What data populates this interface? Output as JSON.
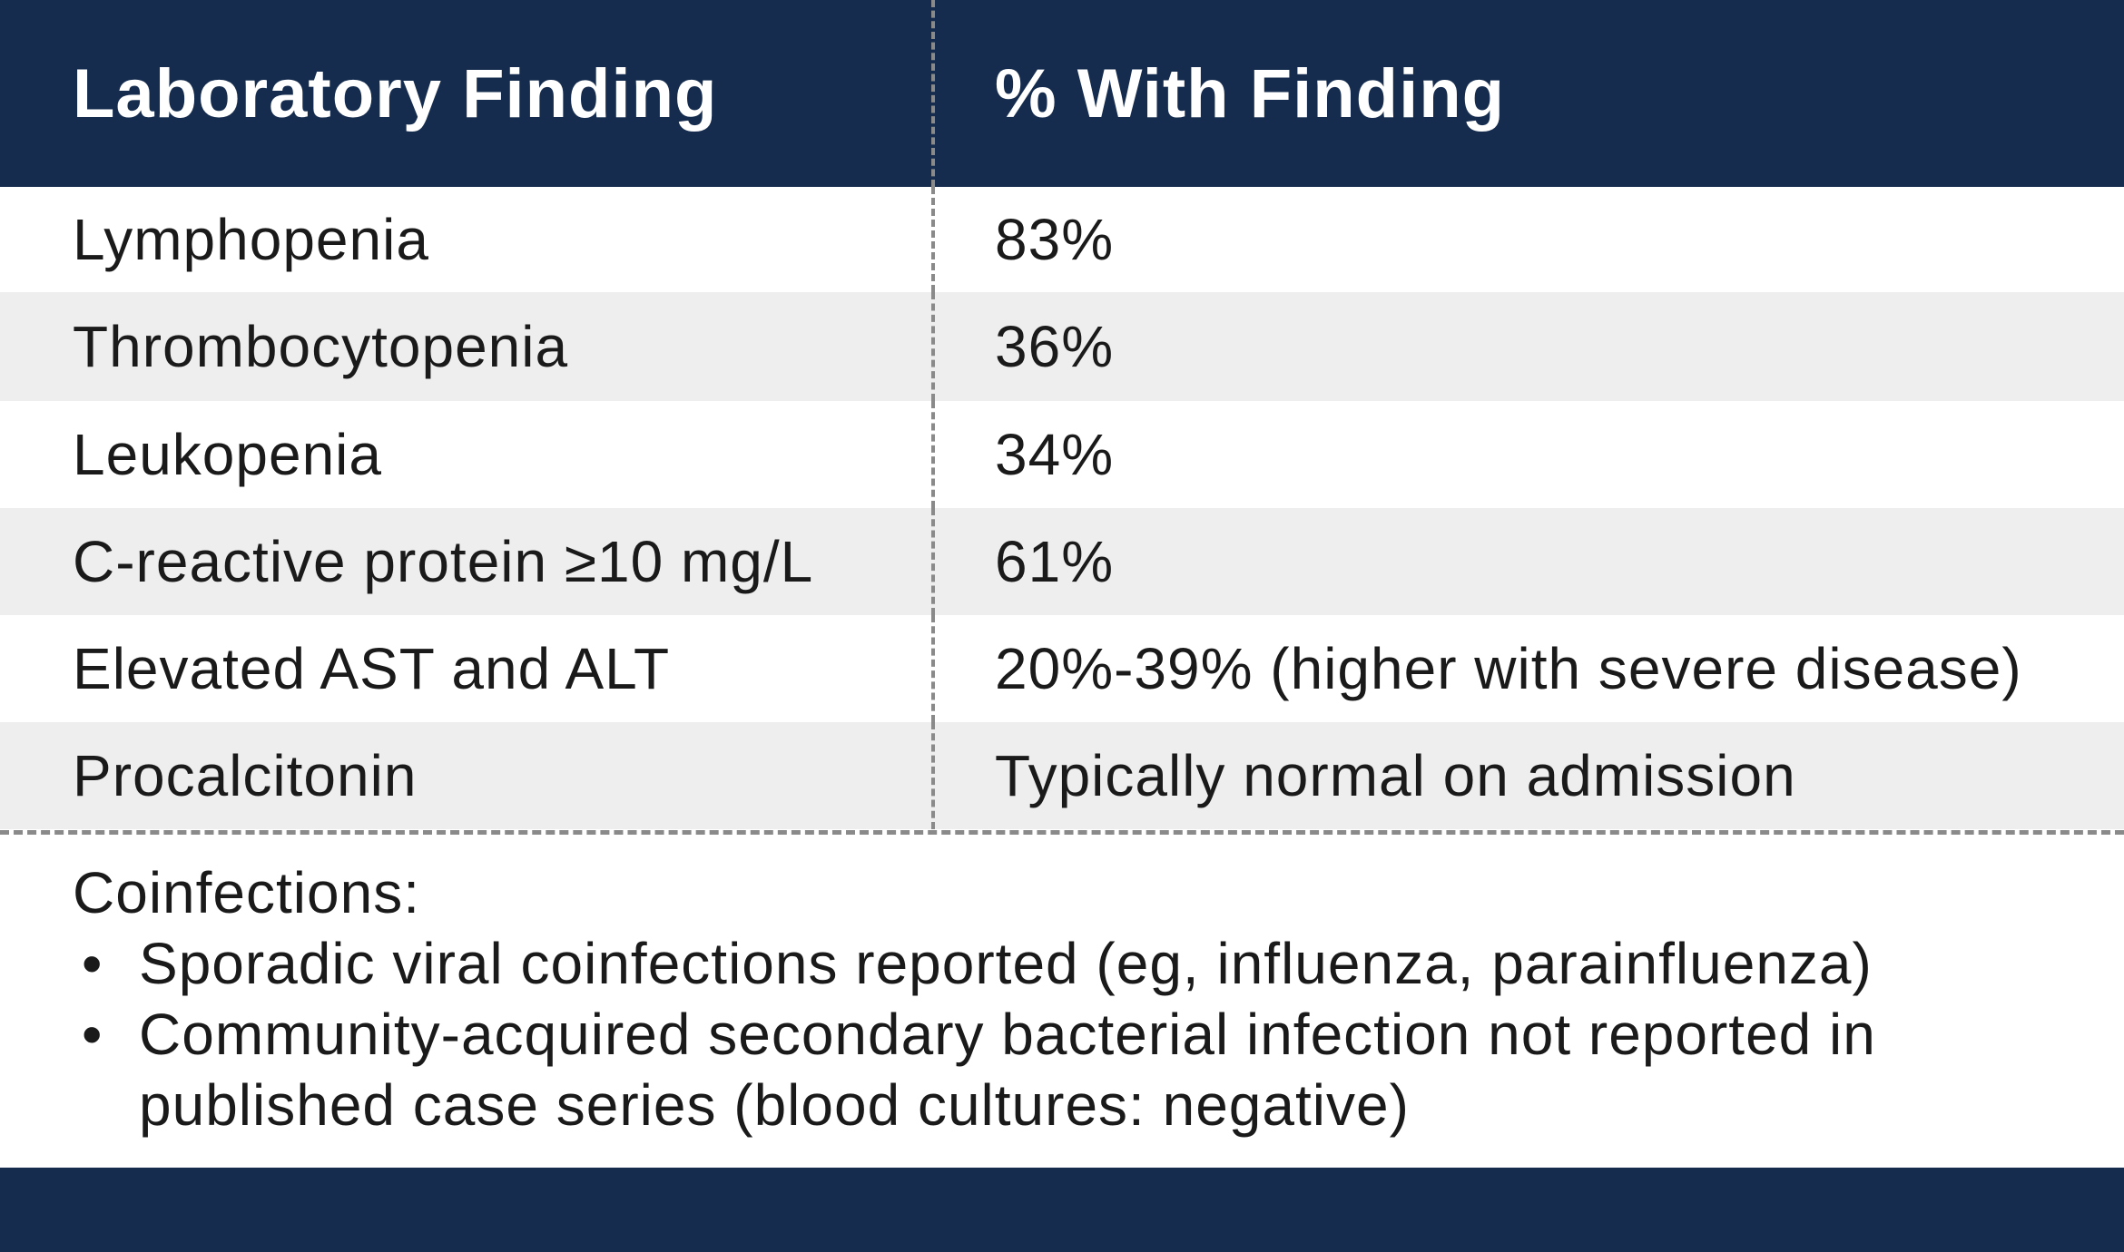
{
  "table": {
    "headers": [
      "Laboratory Finding",
      "% With Finding"
    ],
    "rows": [
      [
        "Lymphopenia",
        "83%"
      ],
      [
        "Thrombocytopenia",
        "36%"
      ],
      [
        "Leukopenia",
        "34%"
      ],
      [
        "C-reactive protein ≥10 mg/L",
        "61%"
      ],
      [
        "Elevated AST and ALT",
        "20%-39% (higher with severe disease)"
      ],
      [
        "Procalcitonin",
        "Typically normal on admission"
      ]
    ]
  },
  "coinfections": {
    "title": "Coinfections:",
    "bullet_symbol": "•",
    "items": [
      "Sporadic viral coinfections reported (eg, influenza, parainfluenza)",
      "Community-acquired secondary bacterial infection not reported in published case series (blood cultures: negative)"
    ]
  },
  "colors": {
    "header_bg": "#152c4e",
    "alt_row_bg": "#eeeeee",
    "divider": "#8a8a8a"
  }
}
